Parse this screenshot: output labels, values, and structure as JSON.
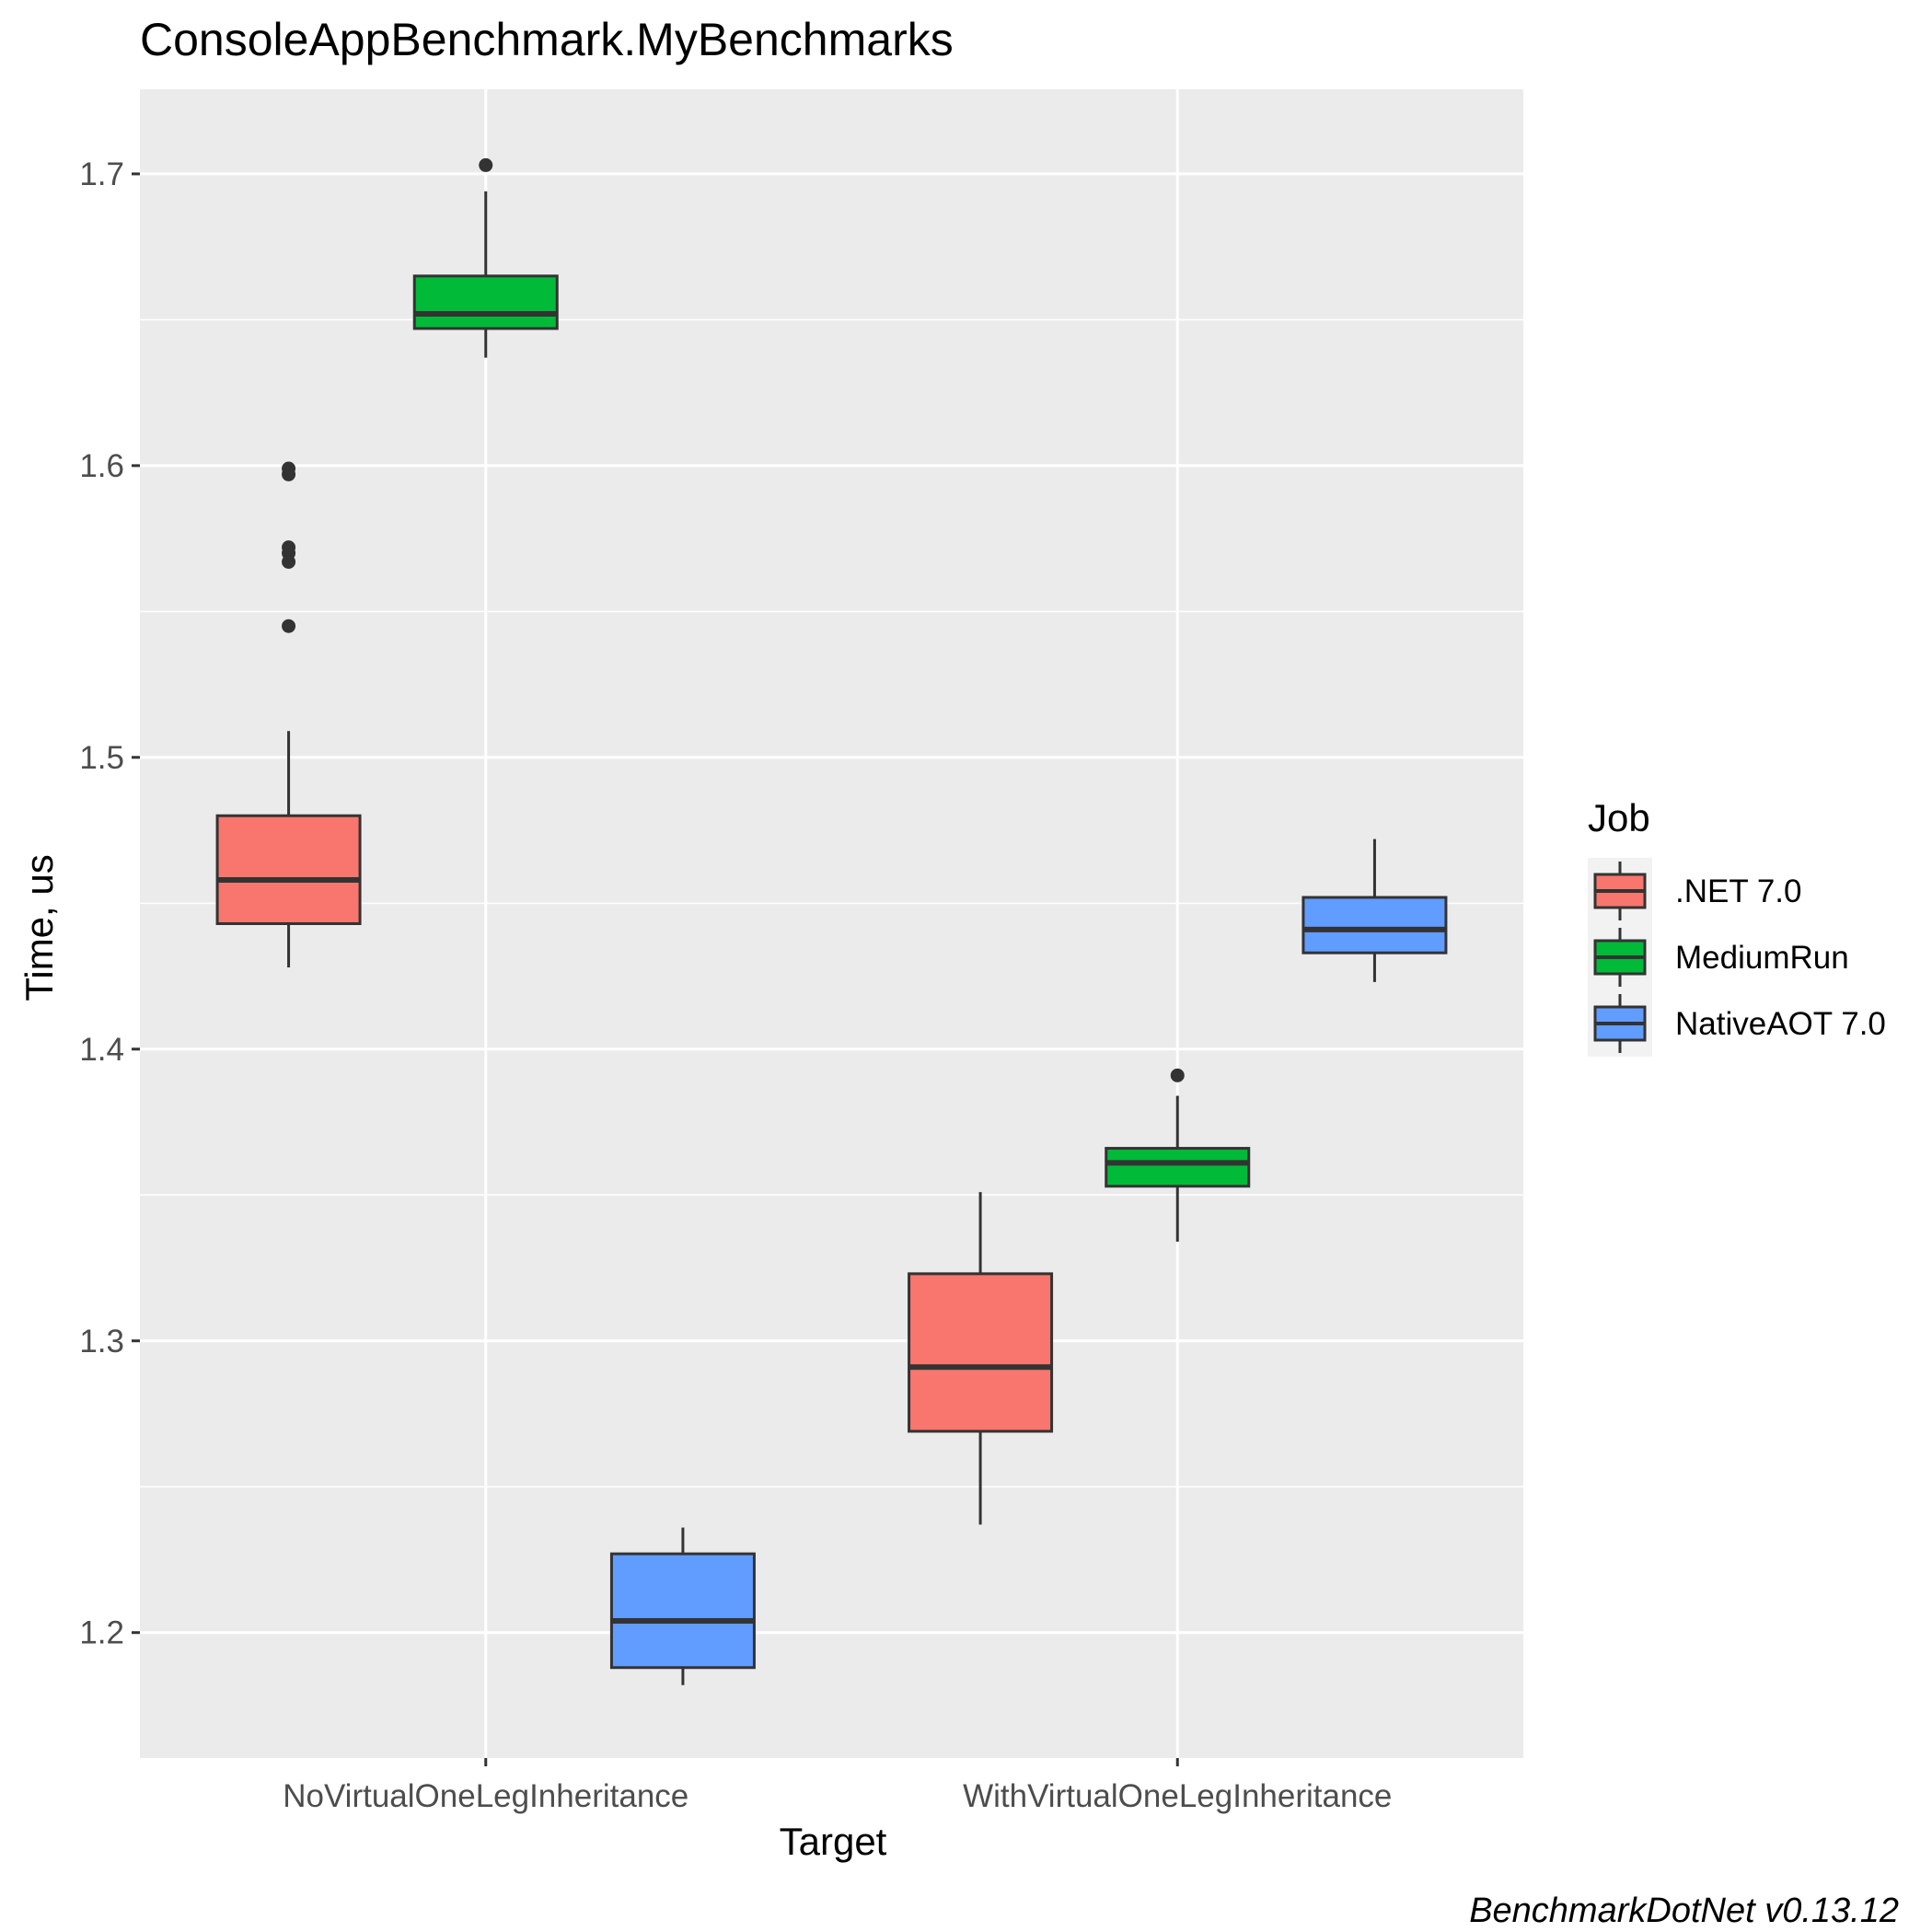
{
  "chart_data": {
    "type": "boxplot",
    "title": "ConsoleAppBenchmark.MyBenchmarks",
    "xlabel": "Target",
    "ylabel": "Time, us",
    "caption": "BenchmarkDotNet v0.13.12",
    "categories": [
      "NoVirtualOneLegInheritance",
      "WithVirtualOneLegInheritance"
    ],
    "ylim": [
      1.157,
      1.729
    ],
    "yticks": [
      1.2,
      1.3,
      1.4,
      1.5,
      1.6,
      1.7
    ],
    "ytick_labels": [
      "1.2",
      "1.3",
      "1.4",
      "1.5",
      "1.6",
      "1.7"
    ],
    "grid": true,
    "legend": {
      "title": "Job",
      "position": "right"
    },
    "series": [
      {
        "name": ".NET 7.0",
        "color": "#F8766D",
        "boxes": [
          {
            "category": "NoVirtualOneLegInheritance",
            "whisker_low": 1.428,
            "q1": 1.443,
            "median": 1.458,
            "q3": 1.48,
            "whisker_high": 1.509,
            "outliers": [
              1.545,
              1.567,
              1.57,
              1.572,
              1.597,
              1.599
            ]
          },
          {
            "category": "WithVirtualOneLegInheritance",
            "whisker_low": 1.237,
            "q1": 1.269,
            "median": 1.291,
            "q3": 1.323,
            "whisker_high": 1.351,
            "outliers": []
          }
        ]
      },
      {
        "name": "MediumRun",
        "color": "#00BA38",
        "boxes": [
          {
            "category": "NoVirtualOneLegInheritance",
            "whisker_low": 1.637,
            "q1": 1.647,
            "median": 1.652,
            "q3": 1.665,
            "whisker_high": 1.694,
            "outliers": [
              1.703
            ]
          },
          {
            "category": "WithVirtualOneLegInheritance",
            "whisker_low": 1.334,
            "q1": 1.353,
            "median": 1.361,
            "q3": 1.366,
            "whisker_high": 1.384,
            "outliers": [
              1.391
            ]
          }
        ]
      },
      {
        "name": "NativeAOT 7.0",
        "color": "#619CFF",
        "boxes": [
          {
            "category": "NoVirtualOneLegInheritance",
            "whisker_low": 1.182,
            "q1": 1.188,
            "median": 1.204,
            "q3": 1.227,
            "whisker_high": 1.236,
            "outliers": []
          },
          {
            "category": "WithVirtualOneLegInheritance",
            "whisker_low": 1.423,
            "q1": 1.433,
            "median": 1.441,
            "q3": 1.452,
            "whisker_high": 1.472,
            "outliers": []
          }
        ]
      }
    ]
  }
}
